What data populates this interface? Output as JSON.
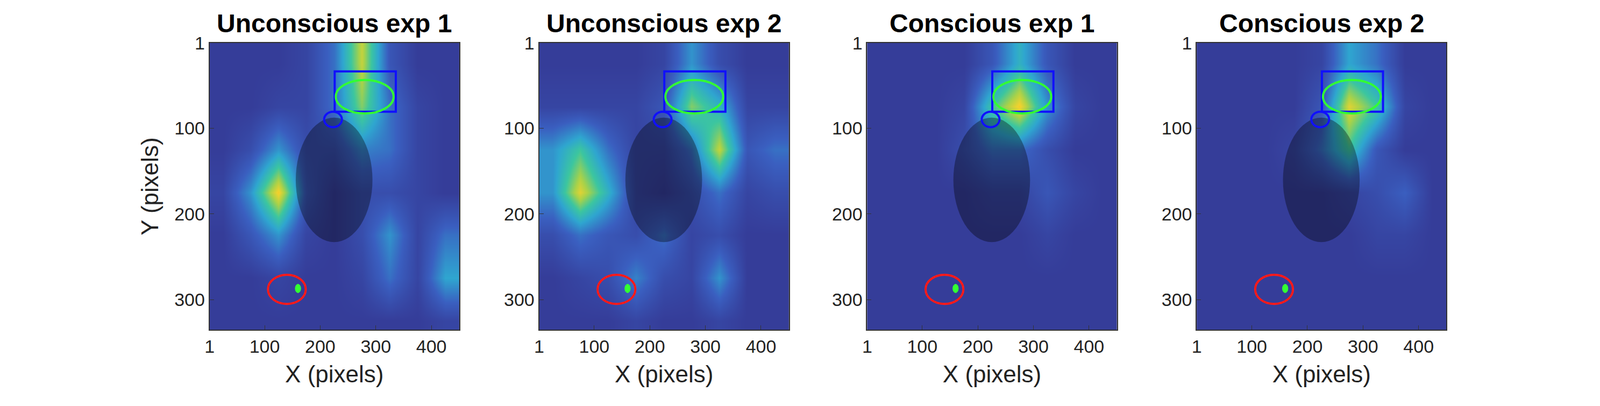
{
  "chart_data": [
    {
      "type": "heatmap",
      "title": "Unconscious exp 1",
      "x_label": "X (pixels)",
      "y_label": "Y (pixels)",
      "xlim": [
        1,
        450
      ],
      "ylim": [
        335,
        1
      ],
      "xticks": [
        1,
        100,
        200,
        300,
        400
      ],
      "yticks": [
        1,
        100,
        200,
        300
      ],
      "zlim": [
        0,
        1
      ],
      "x": [
        25,
        75,
        125,
        175,
        225,
        275,
        325,
        375,
        425
      ],
      "y": [
        25,
        75,
        125,
        175,
        225,
        275,
        325
      ],
      "z": [
        [
          0.05,
          0.05,
          0.05,
          0.1,
          0.3,
          0.8,
          0.2,
          0.05,
          0.05
        ],
        [
          0.05,
          0.05,
          0.1,
          0.1,
          0.3,
          0.7,
          0.3,
          0.1,
          0.05
        ],
        [
          0.05,
          0.15,
          0.4,
          0.15,
          0.15,
          0.35,
          0.3,
          0.1,
          0.05
        ],
        [
          0.1,
          0.4,
          0.9,
          0.2,
          0.05,
          0.15,
          0.15,
          0.1,
          0.05
        ],
        [
          0.05,
          0.2,
          0.4,
          0.1,
          0.05,
          0.15,
          0.4,
          0.1,
          0.3
        ],
        [
          0.05,
          0.05,
          0.1,
          0.05,
          0.05,
          0.1,
          0.3,
          0.1,
          0.45
        ],
        [
          0.05,
          0.05,
          0.05,
          0.05,
          0.05,
          0.05,
          0.05,
          0.05,
          0.1
        ]
      ],
      "regions": [
        {
          "type": "shade",
          "color": "rgba(0,0,0,0.35)",
          "x": [
            156,
            294
          ],
          "y": [
            88,
            233
          ]
        },
        {
          "type": "rect",
          "color": "#1010ff",
          "x": [
            226,
            336
          ],
          "y": [
            34,
            81
          ]
        },
        {
          "type": "circle",
          "color": "#33ff33",
          "x": [
            228,
            332
          ],
          "y": [
            44,
            83
          ]
        },
        {
          "type": "circle",
          "color": "#1010ff",
          "x": [
            207,
            239
          ],
          "y": [
            81,
            99
          ]
        },
        {
          "type": "circle",
          "color": "#ff1a1a",
          "x": [
            106,
            174
          ],
          "y": [
            271,
            305
          ]
        },
        {
          "type": "dot",
          "color": "#33ff33",
          "x": [
            155,
            165
          ],
          "y": [
            282,
            292
          ]
        }
      ]
    },
    {
      "type": "heatmap",
      "title": "Unconscious exp 2",
      "x_label": "X (pixels)",
      "xlim": [
        1,
        450
      ],
      "ylim": [
        335,
        1
      ],
      "xticks": [
        1,
        100,
        200,
        300,
        400
      ],
      "yticks": [
        1,
        100,
        200,
        300
      ],
      "zlim": [
        0,
        1
      ],
      "x": [
        25,
        75,
        125,
        175,
        225,
        275,
        325,
        375,
        425
      ],
      "y": [
        25,
        75,
        125,
        175,
        225,
        275,
        325
      ],
      "z": [
        [
          0.05,
          0.05,
          0.05,
          0.05,
          0.1,
          0.4,
          0.15,
          0.05,
          0.05
        ],
        [
          0.1,
          0.1,
          0.1,
          0.1,
          0.2,
          0.7,
          0.5,
          0.1,
          0.1
        ],
        [
          0.4,
          0.6,
          0.3,
          0.1,
          0.1,
          0.3,
          0.8,
          0.2,
          0.3
        ],
        [
          0.4,
          0.85,
          0.5,
          0.1,
          0.05,
          0.15,
          0.3,
          0.1,
          0.15
        ],
        [
          0.15,
          0.3,
          0.2,
          0.15,
          0.3,
          0.1,
          0.15,
          0.05,
          0.05
        ],
        [
          0.05,
          0.1,
          0.15,
          0.35,
          0.15,
          0.1,
          0.4,
          0.05,
          0.05
        ],
        [
          0.05,
          0.05,
          0.05,
          0.1,
          0.05,
          0.05,
          0.1,
          0.05,
          0.05
        ]
      ],
      "regions": [
        {
          "type": "shade",
          "color": "rgba(0,0,0,0.35)",
          "x": [
            156,
            294
          ],
          "y": [
            88,
            233
          ]
        },
        {
          "type": "rect",
          "color": "#1010ff",
          "x": [
            226,
            336
          ],
          "y": [
            34,
            81
          ]
        },
        {
          "type": "circle",
          "color": "#33ff33",
          "x": [
            228,
            332
          ],
          "y": [
            44,
            83
          ]
        },
        {
          "type": "circle",
          "color": "#1010ff",
          "x": [
            207,
            239
          ],
          "y": [
            81,
            99
          ]
        },
        {
          "type": "circle",
          "color": "#ff1a1a",
          "x": [
            106,
            174
          ],
          "y": [
            271,
            305
          ]
        },
        {
          "type": "dot",
          "color": "#33ff33",
          "x": [
            155,
            165
          ],
          "y": [
            282,
            292
          ]
        }
      ]
    },
    {
      "type": "heatmap",
      "title": "Conscious exp 1",
      "x_label": "X (pixels)",
      "xlim": [
        1,
        450
      ],
      "ylim": [
        335,
        1
      ],
      "xticks": [
        1,
        100,
        200,
        300,
        400
      ],
      "yticks": [
        1,
        100,
        200,
        300
      ],
      "zlim": [
        0,
        1
      ],
      "x": [
        25,
        75,
        125,
        175,
        225,
        275,
        325,
        375,
        425
      ],
      "y": [
        25,
        75,
        125,
        175,
        225,
        275,
        325
      ],
      "z": [
        [
          0.05,
          0.05,
          0.05,
          0.05,
          0.2,
          0.5,
          0.2,
          0.05,
          0.05
        ],
        [
          0.05,
          0.05,
          0.05,
          0.1,
          0.6,
          0.9,
          0.4,
          0.1,
          0.05
        ],
        [
          0.05,
          0.05,
          0.05,
          0.15,
          0.3,
          0.3,
          0.15,
          0.05,
          0.05
        ],
        [
          0.05,
          0.05,
          0.05,
          0.05,
          0.1,
          0.1,
          0.2,
          0.1,
          0.05
        ],
        [
          0.05,
          0.05,
          0.05,
          0.05,
          0.05,
          0.05,
          0.1,
          0.05,
          0.05
        ],
        [
          0.05,
          0.05,
          0.05,
          0.05,
          0.05,
          0.05,
          0.05,
          0.05,
          0.05
        ],
        [
          0.05,
          0.05,
          0.05,
          0.05,
          0.05,
          0.05,
          0.05,
          0.05,
          0.05
        ]
      ],
      "regions": [
        {
          "type": "shade",
          "color": "rgba(0,0,0,0.35)",
          "x": [
            156,
            294
          ],
          "y": [
            88,
            233
          ]
        },
        {
          "type": "rect",
          "color": "#1010ff",
          "x": [
            226,
            336
          ],
          "y": [
            34,
            81
          ]
        },
        {
          "type": "circle",
          "color": "#33ff33",
          "x": [
            228,
            332
          ],
          "y": [
            44,
            83
          ]
        },
        {
          "type": "circle",
          "color": "#1010ff",
          "x": [
            207,
            239
          ],
          "y": [
            81,
            99
          ]
        },
        {
          "type": "circle",
          "color": "#ff1a1a",
          "x": [
            106,
            174
          ],
          "y": [
            271,
            305
          ]
        },
        {
          "type": "dot",
          "color": "#33ff33",
          "x": [
            155,
            165
          ],
          "y": [
            282,
            292
          ]
        }
      ]
    },
    {
      "type": "heatmap",
      "title": "Conscious exp 2",
      "x_label": "X (pixels)",
      "xlim": [
        1,
        450
      ],
      "ylim": [
        335,
        1
      ],
      "xticks": [
        1,
        100,
        200,
        300,
        400
      ],
      "yticks": [
        1,
        100,
        200,
        300
      ],
      "zlim": [
        0,
        1
      ],
      "x": [
        25,
        75,
        125,
        175,
        225,
        275,
        325,
        375,
        425
      ],
      "y": [
        25,
        75,
        125,
        175,
        225,
        275,
        325
      ],
      "z": [
        [
          0.05,
          0.05,
          0.05,
          0.05,
          0.1,
          0.45,
          0.3,
          0.05,
          0.05
        ],
        [
          0.05,
          0.05,
          0.05,
          0.05,
          0.2,
          0.85,
          0.6,
          0.1,
          0.05
        ],
        [
          0.05,
          0.05,
          0.05,
          0.1,
          0.3,
          0.6,
          0.2,
          0.05,
          0.05
        ],
        [
          0.05,
          0.05,
          0.05,
          0.05,
          0.05,
          0.1,
          0.15,
          0.25,
          0.05
        ],
        [
          0.05,
          0.05,
          0.05,
          0.05,
          0.05,
          0.05,
          0.1,
          0.1,
          0.05
        ],
        [
          0.05,
          0.05,
          0.05,
          0.05,
          0.05,
          0.05,
          0.05,
          0.05,
          0.05
        ],
        [
          0.05,
          0.05,
          0.05,
          0.05,
          0.05,
          0.05,
          0.05,
          0.05,
          0.05
        ]
      ],
      "regions": [
        {
          "type": "shade",
          "color": "rgba(0,0,0,0.35)",
          "x": [
            156,
            294
          ],
          "y": [
            88,
            233
          ]
        },
        {
          "type": "rect",
          "color": "#1010ff",
          "x": [
            226,
            336
          ],
          "y": [
            34,
            81
          ]
        },
        {
          "type": "circle",
          "color": "#33ff33",
          "x": [
            228,
            332
          ],
          "y": [
            44,
            83
          ]
        },
        {
          "type": "circle",
          "color": "#1010ff",
          "x": [
            207,
            239
          ],
          "y": [
            81,
            99
          ]
        },
        {
          "type": "circle",
          "color": "#ff1a1a",
          "x": [
            106,
            174
          ],
          "y": [
            271,
            305
          ]
        },
        {
          "type": "dot",
          "color": "#33ff33",
          "x": [
            155,
            165
          ],
          "y": [
            282,
            292
          ]
        }
      ]
    }
  ]
}
